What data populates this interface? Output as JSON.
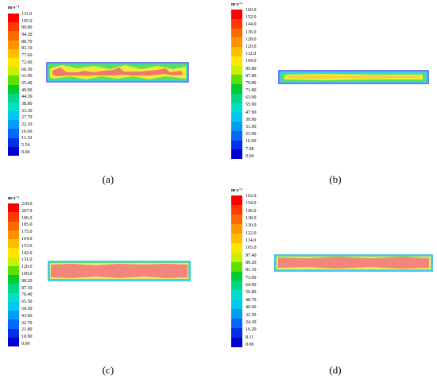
{
  "colors": [
    "#ff0000",
    "#ff3a00",
    "#ff6a00",
    "#ff9500",
    "#ffbf00",
    "#ffe600",
    "#c8f000",
    "#5ee000",
    "#00cc30",
    "#00d888",
    "#00e0c8",
    "#00c8f0",
    "#009cf8",
    "#0068f8",
    "#0030e8",
    "#0000d0"
  ],
  "panels": [
    {
      "unit": "m·s⁻¹",
      "ticks": [
        "111.0",
        "105.0",
        "99.80",
        "94.20",
        "88.70",
        "83.10",
        "77.60",
        "72.00",
        "66.50",
        "61.00",
        "55.40",
        "49.90",
        "44.30",
        "38.80",
        "33.30",
        "27.70",
        "22.20",
        "16.60",
        "11.10",
        "5.54",
        "0.00"
      ],
      "caption": "(a)"
    },
    {
      "unit": "m·s⁻¹",
      "ticks": [
        "160.0",
        "152.0",
        "144.0",
        "136.0",
        "128.0",
        "120.0",
        "112.0",
        "104.0",
        "95.80",
        "87.80",
        "79.80",
        "71.80",
        "63.90",
        "55.90",
        "47.90",
        "39.90",
        "31.90",
        "23.90",
        "16.00",
        "7.98",
        "0.00"
      ],
      "caption": "(b)"
    },
    {
      "unit": "m·s⁻¹",
      "ticks": [
        "218.0",
        "207.0",
        "196.0",
        "185.0",
        "175.0",
        "164.0",
        "153.0",
        "142.0",
        "131.0",
        "120.0",
        "109.0",
        "98.20",
        "87.30",
        "76.40",
        "65.50",
        "54.50",
        "43.60",
        "32.70",
        "21.80",
        "10.90",
        "0.00"
      ],
      "caption": "(c)"
    },
    {
      "unit": "m·s⁻¹",
      "ticks": [
        "162.0",
        "154.0",
        "146.0",
        "138.0",
        "130.0",
        "122.0",
        "114.0",
        "105.0",
        "97.40",
        "89.20",
        "81.10",
        "73.00",
        "64.90",
        "56.80",
        "48.70",
        "40.60",
        "32.50",
        "24.30",
        "16.20",
        "8.11",
        "0.00"
      ],
      "caption": "(d)"
    }
  ]
}
